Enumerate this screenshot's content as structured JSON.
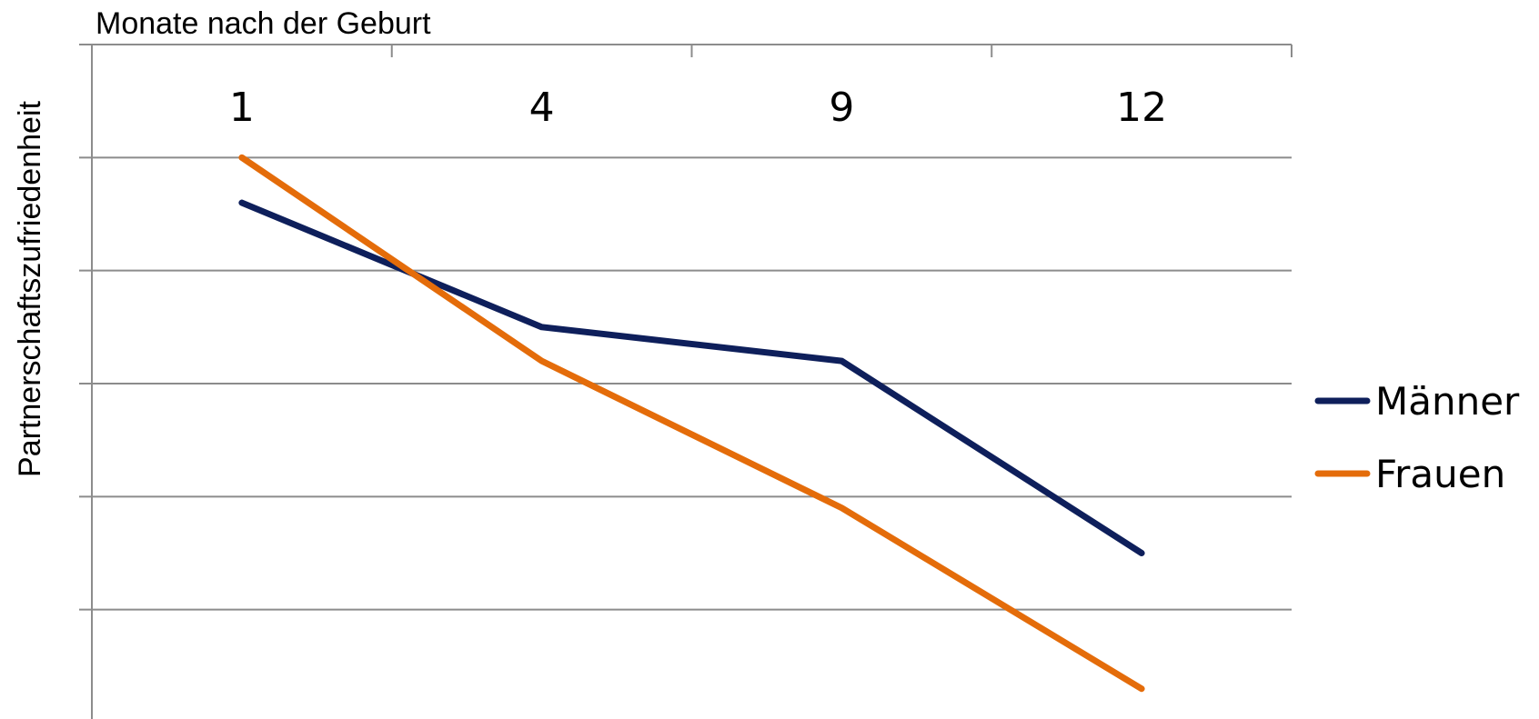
{
  "chart_data": {
    "type": "line",
    "title": "",
    "xlabel": "Monate nach der Geburt",
    "ylabel": "Partnerschaftszufriedenheit",
    "x_axis_position": "top",
    "categories": [
      "1",
      "4",
      "9",
      "12"
    ],
    "ylim": [
      0,
      6
    ],
    "y_tick_labels_shown": false,
    "grid": true,
    "legend": "right",
    "series": [
      {
        "name": "Männer",
        "color": "#0e1f5b",
        "values": [
          4.6,
          3.5,
          3.2,
          1.5
        ]
      },
      {
        "name": "Frauen",
        "color": "#e46c0a",
        "values": [
          5.0,
          3.2,
          1.9,
          0.3
        ]
      }
    ]
  }
}
